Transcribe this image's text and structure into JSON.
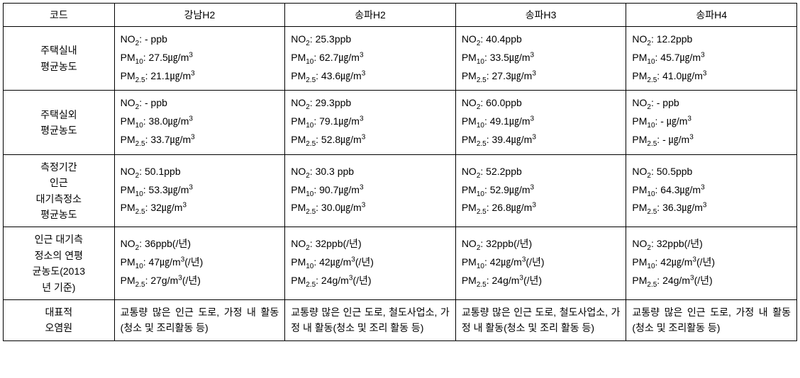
{
  "table": {
    "headers": [
      "코드",
      "강남H2",
      "송파H2",
      "송파H3",
      "송파H4"
    ],
    "rowLabels": [
      "주택실내\n평균농도",
      "주택실외\n평균농도",
      "측정기간\n인근\n대기측정소\n평균농도",
      "인근 대기측\n정소의 연평\n균농도(2013\n년 기준)",
      "대표적\n오염원"
    ],
    "rows": [
      {
        "cells": [
          {
            "no2": "- ppb",
            "pm10": "27.5㎍/m³",
            "pm25": "21.1㎍/m³"
          },
          {
            "no2": "25.3ppb",
            "pm10": "62.7㎍/m³",
            "pm25": "43.6㎍/m³"
          },
          {
            "no2": "40.4ppb",
            "pm10": "33.5㎍/m³",
            "pm25": "27.3㎍/m³"
          },
          {
            "no2": "12.2ppb",
            "pm10": "45.7㎍/m³",
            "pm25": "41.0㎍/m³"
          }
        ]
      },
      {
        "cells": [
          {
            "no2": "- ppb",
            "pm10": "38.0㎍/m³",
            "pm25": "33.7㎍/m³"
          },
          {
            "no2": "29.3ppb",
            "pm10": "79.1㎍/m³",
            "pm25": "52.8㎍/m³"
          },
          {
            "no2": "60.0ppb",
            "pm10": "49.1㎍/m³",
            "pm25": "39.4㎍/m³"
          },
          {
            "no2": "- ppb",
            "pm10": "- ㎍/m³",
            "pm25": "- ㎍/m³"
          }
        ]
      },
      {
        "cells": [
          {
            "no2": "50.1ppb",
            "pm10": "53.3㎍/m³",
            "pm25": "32㎍/m³"
          },
          {
            "no2": "30.3 ppb",
            "pm10": "90.7㎍/m³",
            "pm25": "30.0㎍/m³"
          },
          {
            "no2": "52.2ppb",
            "pm10": "52.9㎍/m³",
            "pm25": "26.8㎍/m³"
          },
          {
            "no2": "50.5ppb",
            "pm10": "64.3㎍/m³",
            "pm25": "36.3㎍/m³"
          }
        ]
      },
      {
        "cells": [
          {
            "no2": "36ppb(/년)",
            "pm10": "47㎍/m³(/년)",
            "pm25": "27g/m³(/년)"
          },
          {
            "no2": "32ppb(/년)",
            "pm10": "42㎍/m³(/년)",
            "pm25": "24g/m³(/년)"
          },
          {
            "no2": "32ppb(/년)",
            "pm10": "42㎍/m³(/년)",
            "pm25": "24g/m³(/년)"
          },
          {
            "no2": "32ppb(/년)",
            "pm10": "42㎍/m³(/년)",
            "pm25": "24g/m³(/년)"
          }
        ]
      }
    ],
    "textRow": [
      "교통량 많은 인근 도로, 가정 내 활동(청소 및 조리활동 등)",
      "교통량 많은 인근 도로, 철도사업소, 가정\n내 활동(청소 및 조리\n활동 등)",
      "교통량 많은 인근 도로, 철도사업소, 가정\n내 활동(청소 및 조리\n활동 등)",
      "교통량 많은 인근 도로, 가정 내 활동(청소 및 조리활동 등)"
    ],
    "labels": {
      "no2_prefix": "NO",
      "no2_sub": "2",
      "pm10_prefix": "PM",
      "pm10_sub": "10",
      "pm25_prefix": "PM",
      "pm25_sub": "2.5"
    }
  }
}
